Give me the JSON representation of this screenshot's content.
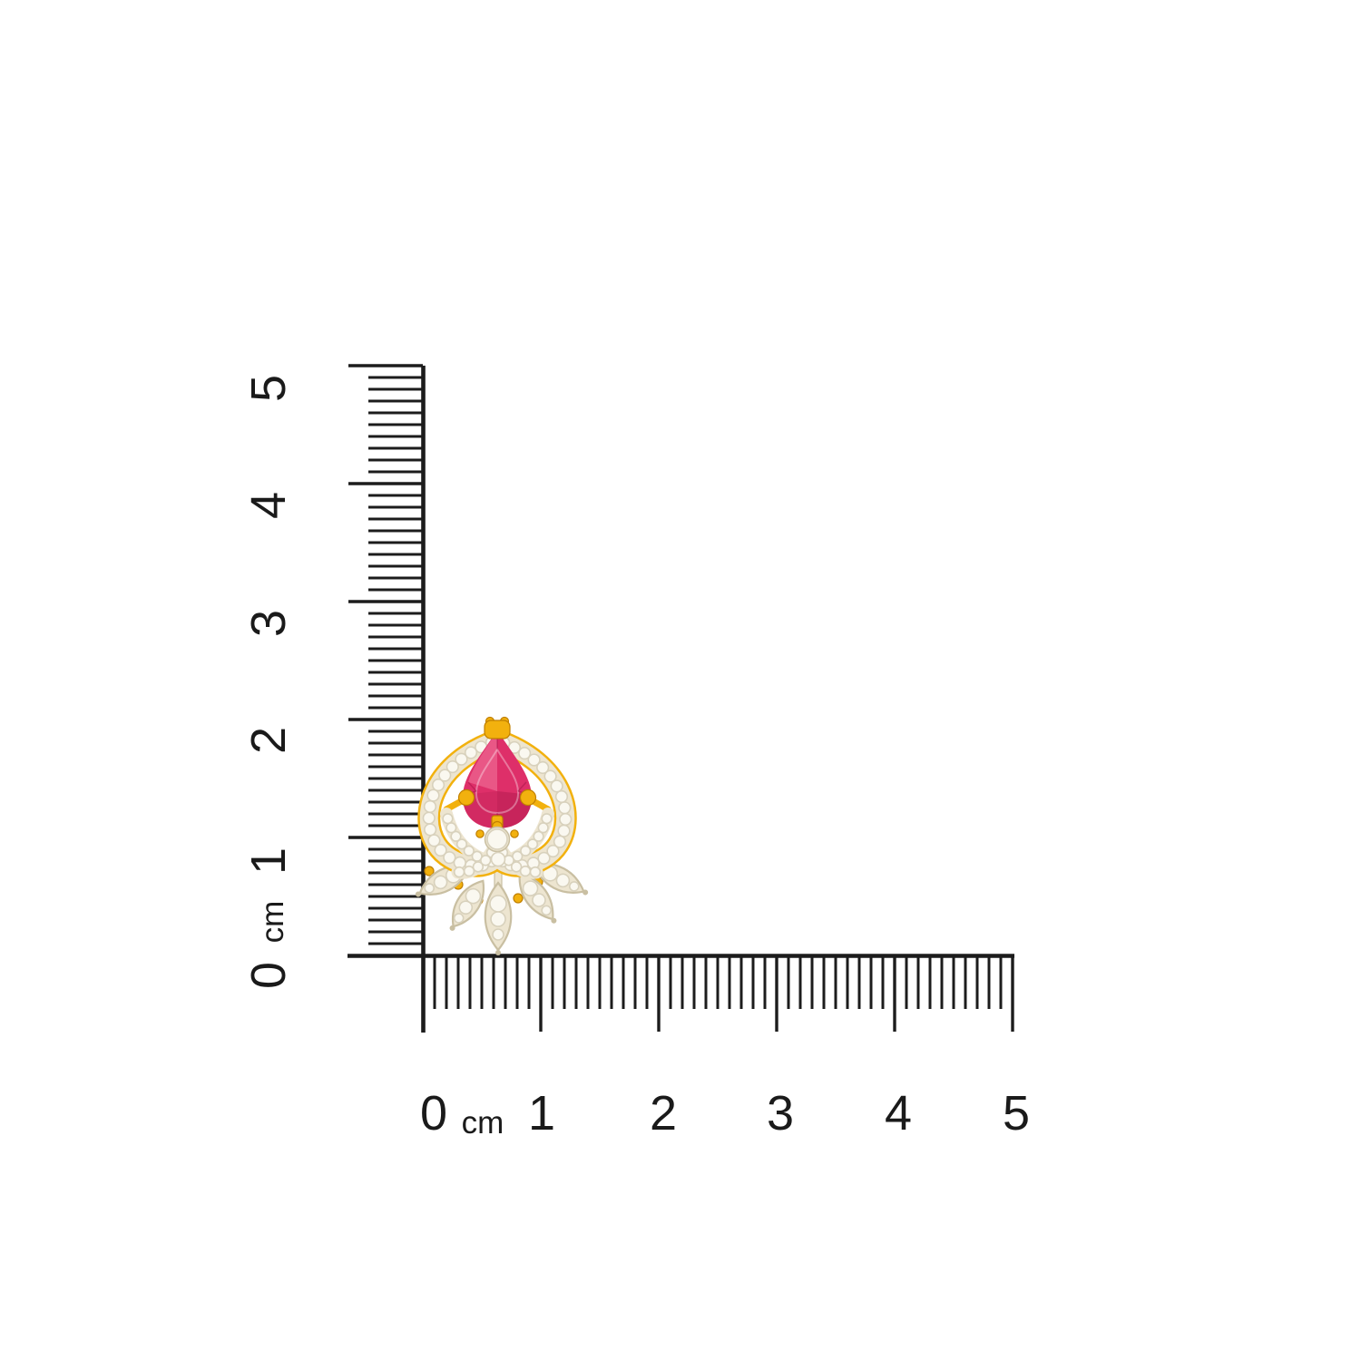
{
  "scene": {
    "background": "#ffffff",
    "description": "Product photo of a gold stud earring with a pear-cut pink ruby stone, cubic-zirconia halo and leaf petals, shown against vertical and horizontal centimeter rulers"
  },
  "rulers": {
    "unit": "cm",
    "line_color": "#1c1c1c",
    "label_color": "#1a1a1a",
    "vertical": {
      "labels": [
        "0",
        "1",
        "2",
        "3",
        "4",
        "5"
      ],
      "unit_label": "cm"
    },
    "horizontal": {
      "labels": [
        "0",
        "1",
        "2",
        "3",
        "4",
        "5"
      ],
      "unit_label": "cm"
    }
  },
  "product": {
    "name": "gold-pink-stone-stud-earring",
    "colors": {
      "gold": "#F2B10E",
      "gold_light": "#FFD45C",
      "gold_dark": "#C07F00",
      "ruby": "#DE2F69",
      "ruby_light": "#F2789F",
      "ruby_dark": "#B01A4E",
      "champagne": "#EDE5D0",
      "champagne_dark": "#C9BFA2",
      "cz_white": "#FAF8F0",
      "cz_ring": "#D8D1BC"
    }
  }
}
